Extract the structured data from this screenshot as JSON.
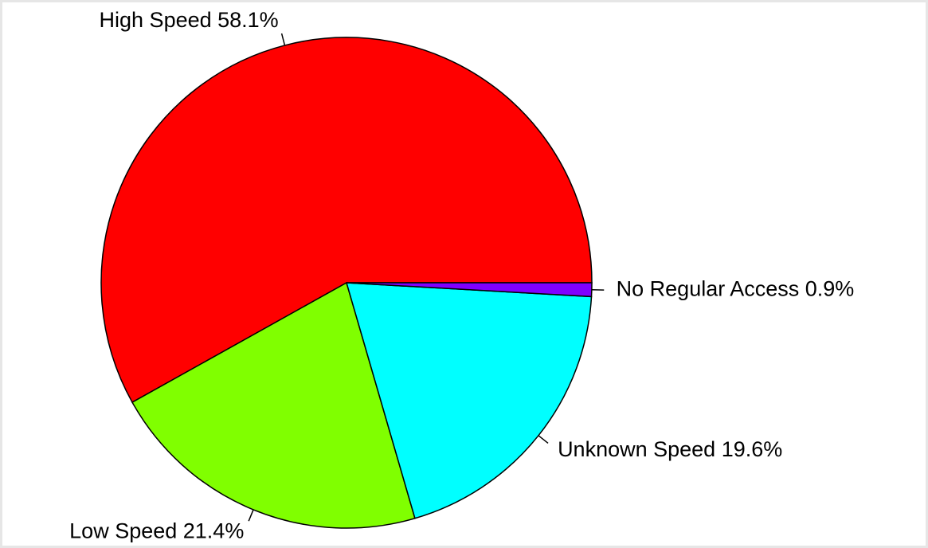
{
  "chart_data": {
    "type": "pie",
    "categories": [
      "High Speed 58.1%",
      "Low Speed 21.4%",
      "Unknown Speed 19.6%",
      "No Regular Access 0.9%"
    ],
    "values": [
      58.1,
      21.4,
      19.6,
      0.9
    ],
    "colors": [
      "#ff0000",
      "#80ff00",
      "#00ffff",
      "#8000ff"
    ]
  }
}
